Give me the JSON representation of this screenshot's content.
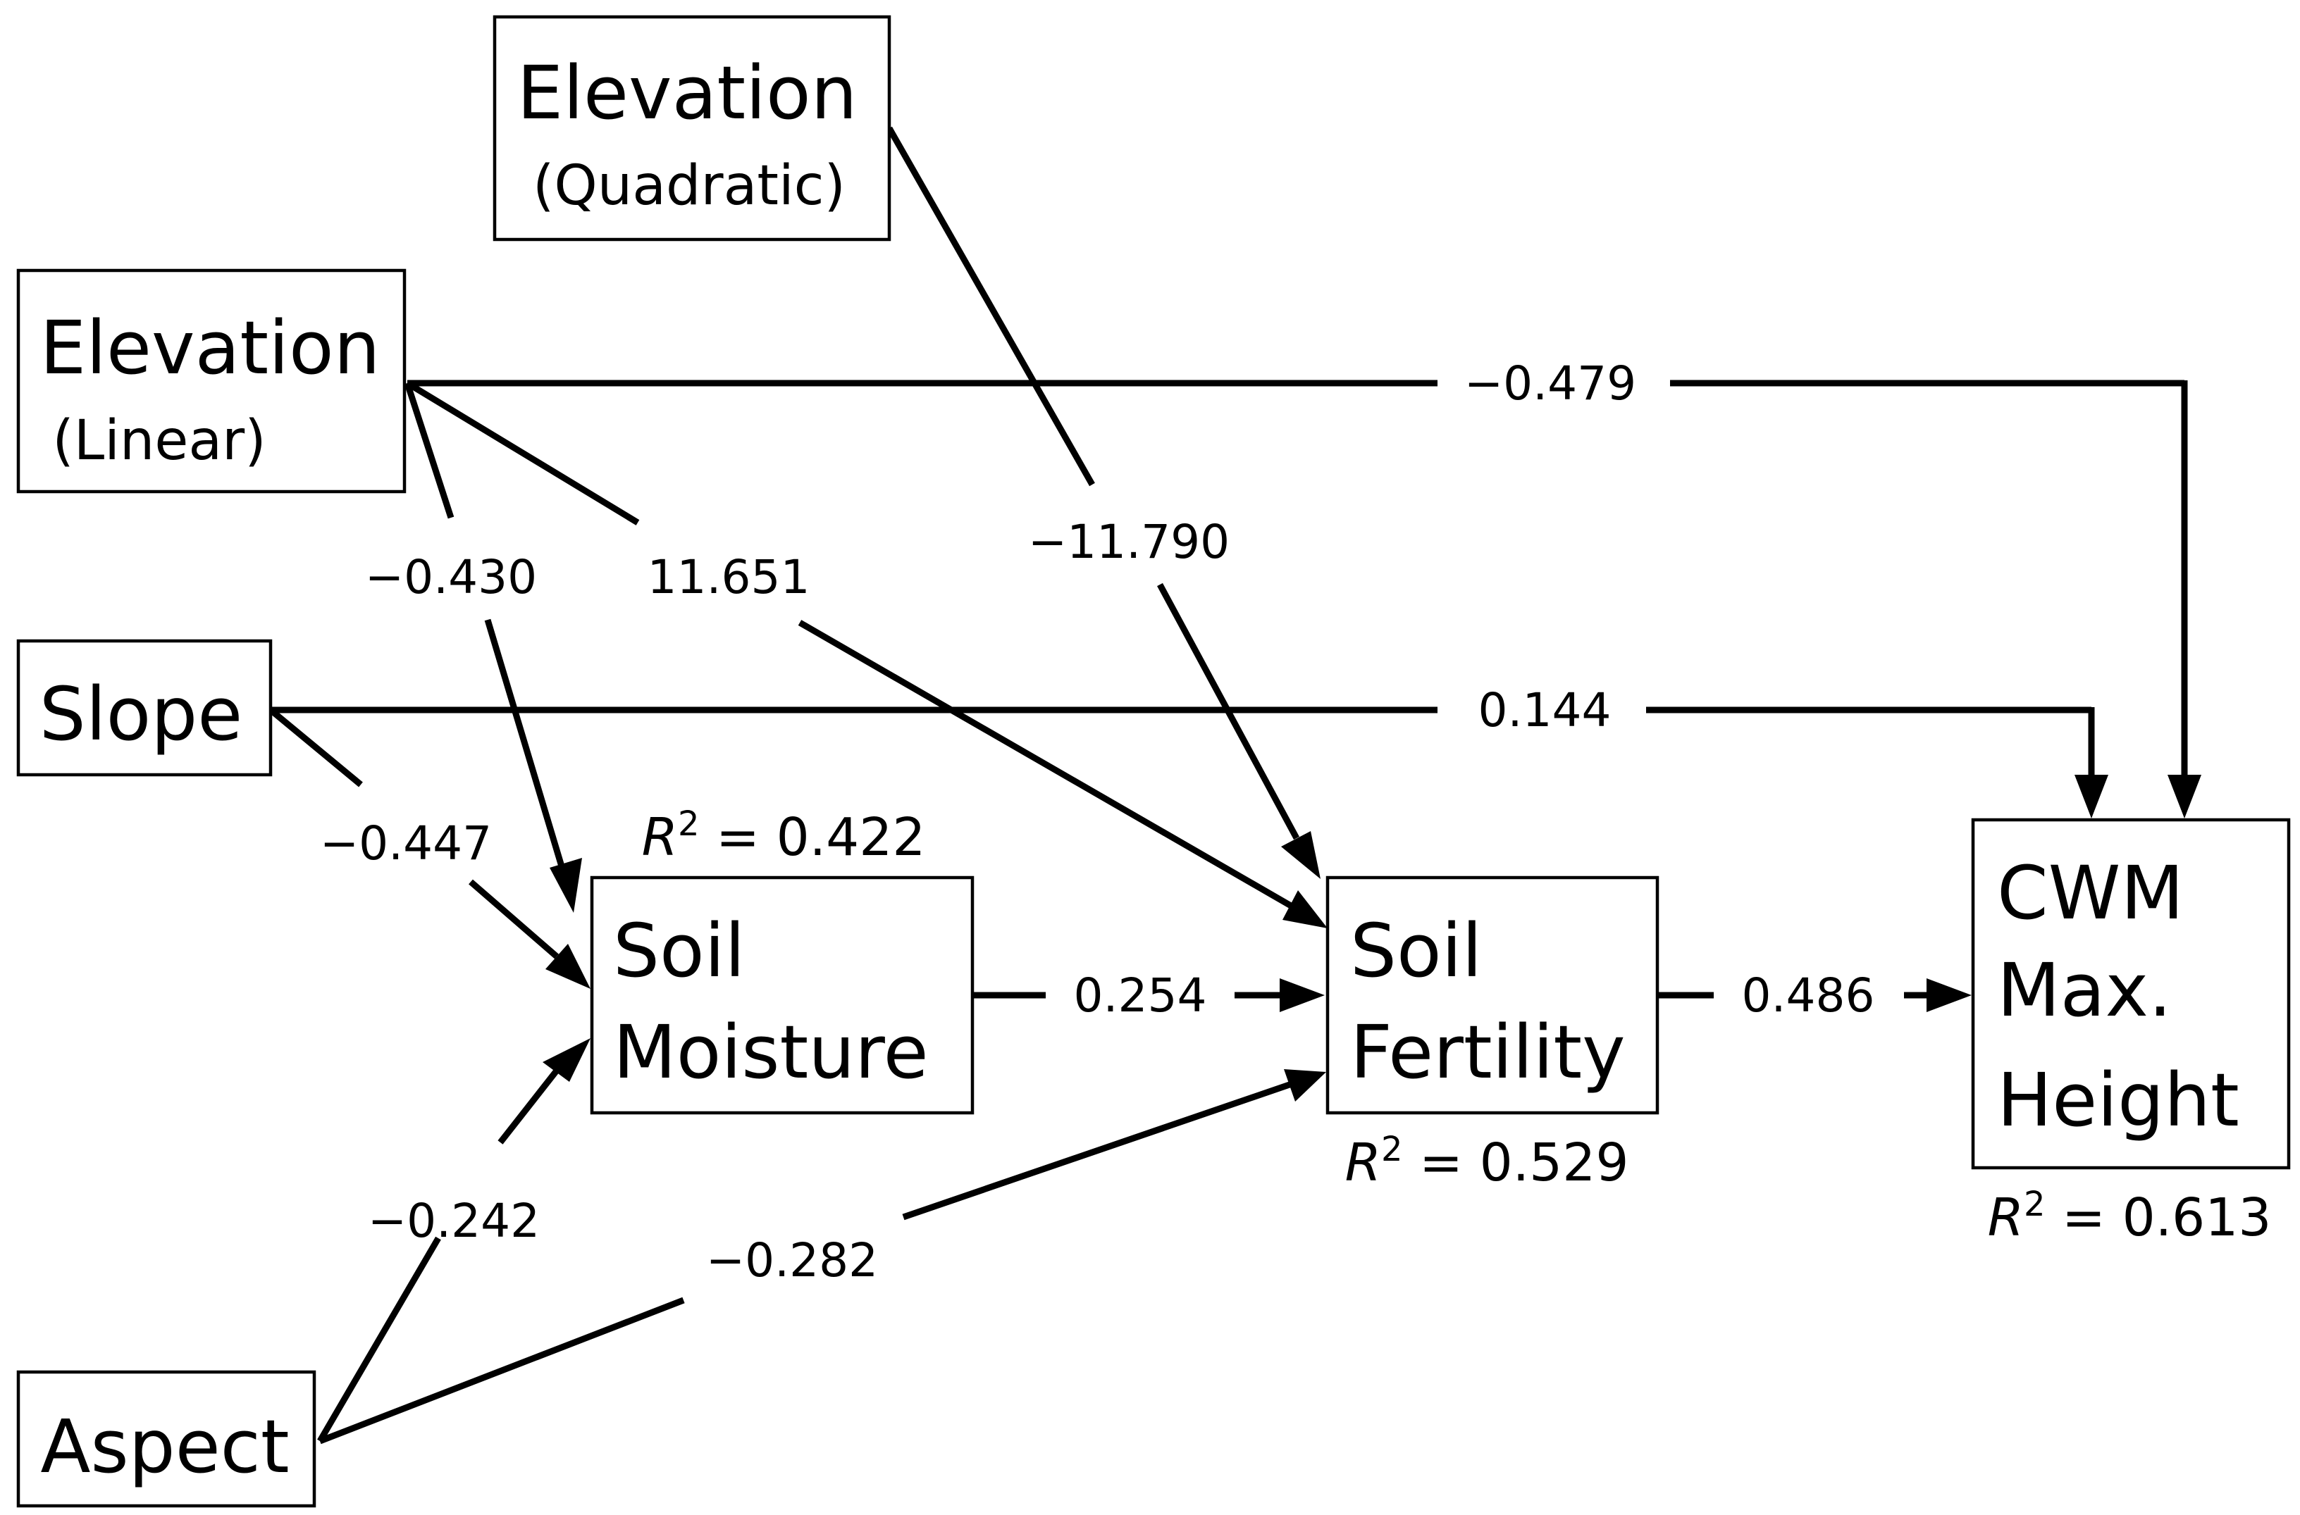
{
  "nodes": {
    "elevation_quadratic": {
      "line1": "Elevation",
      "line2": "(Quadratic)"
    },
    "elevation_linear": {
      "line1": "Elevation",
      "line2": "(Linear)"
    },
    "slope": {
      "line1": "Slope"
    },
    "aspect": {
      "line1": "Aspect"
    },
    "soil_moisture": {
      "line1": "Soil",
      "line2": "Moisture",
      "r2_symbol": "R",
      "r2_sup": "2",
      "r2_value": " = 0.422"
    },
    "soil_fertility": {
      "line1": "Soil",
      "line2": "Fertility",
      "r2_symbol": "R",
      "r2_sup": "2",
      "r2_value": " = 0.529"
    },
    "cwm_max_height": {
      "line1": "CWM",
      "line2": "Max.",
      "line3": "Height",
      "r2_symbol": "R",
      "r2_sup": "2",
      "r2_value": " = 0.613"
    }
  },
  "paths": {
    "elev_linear_to_cwm": "−0.479",
    "slope_to_cwm": "0.144",
    "elev_linear_to_moisture": "−0.430",
    "elev_linear_to_fertility": "11.651",
    "elev_quadratic_to_fertility": "−11.790",
    "slope_to_moisture": "−0.447",
    "moisture_to_fertility": "0.254",
    "fertility_to_cwm": "0.486",
    "aspect_to_moisture": "−0.242",
    "aspect_to_fertility": "−0.282"
  }
}
